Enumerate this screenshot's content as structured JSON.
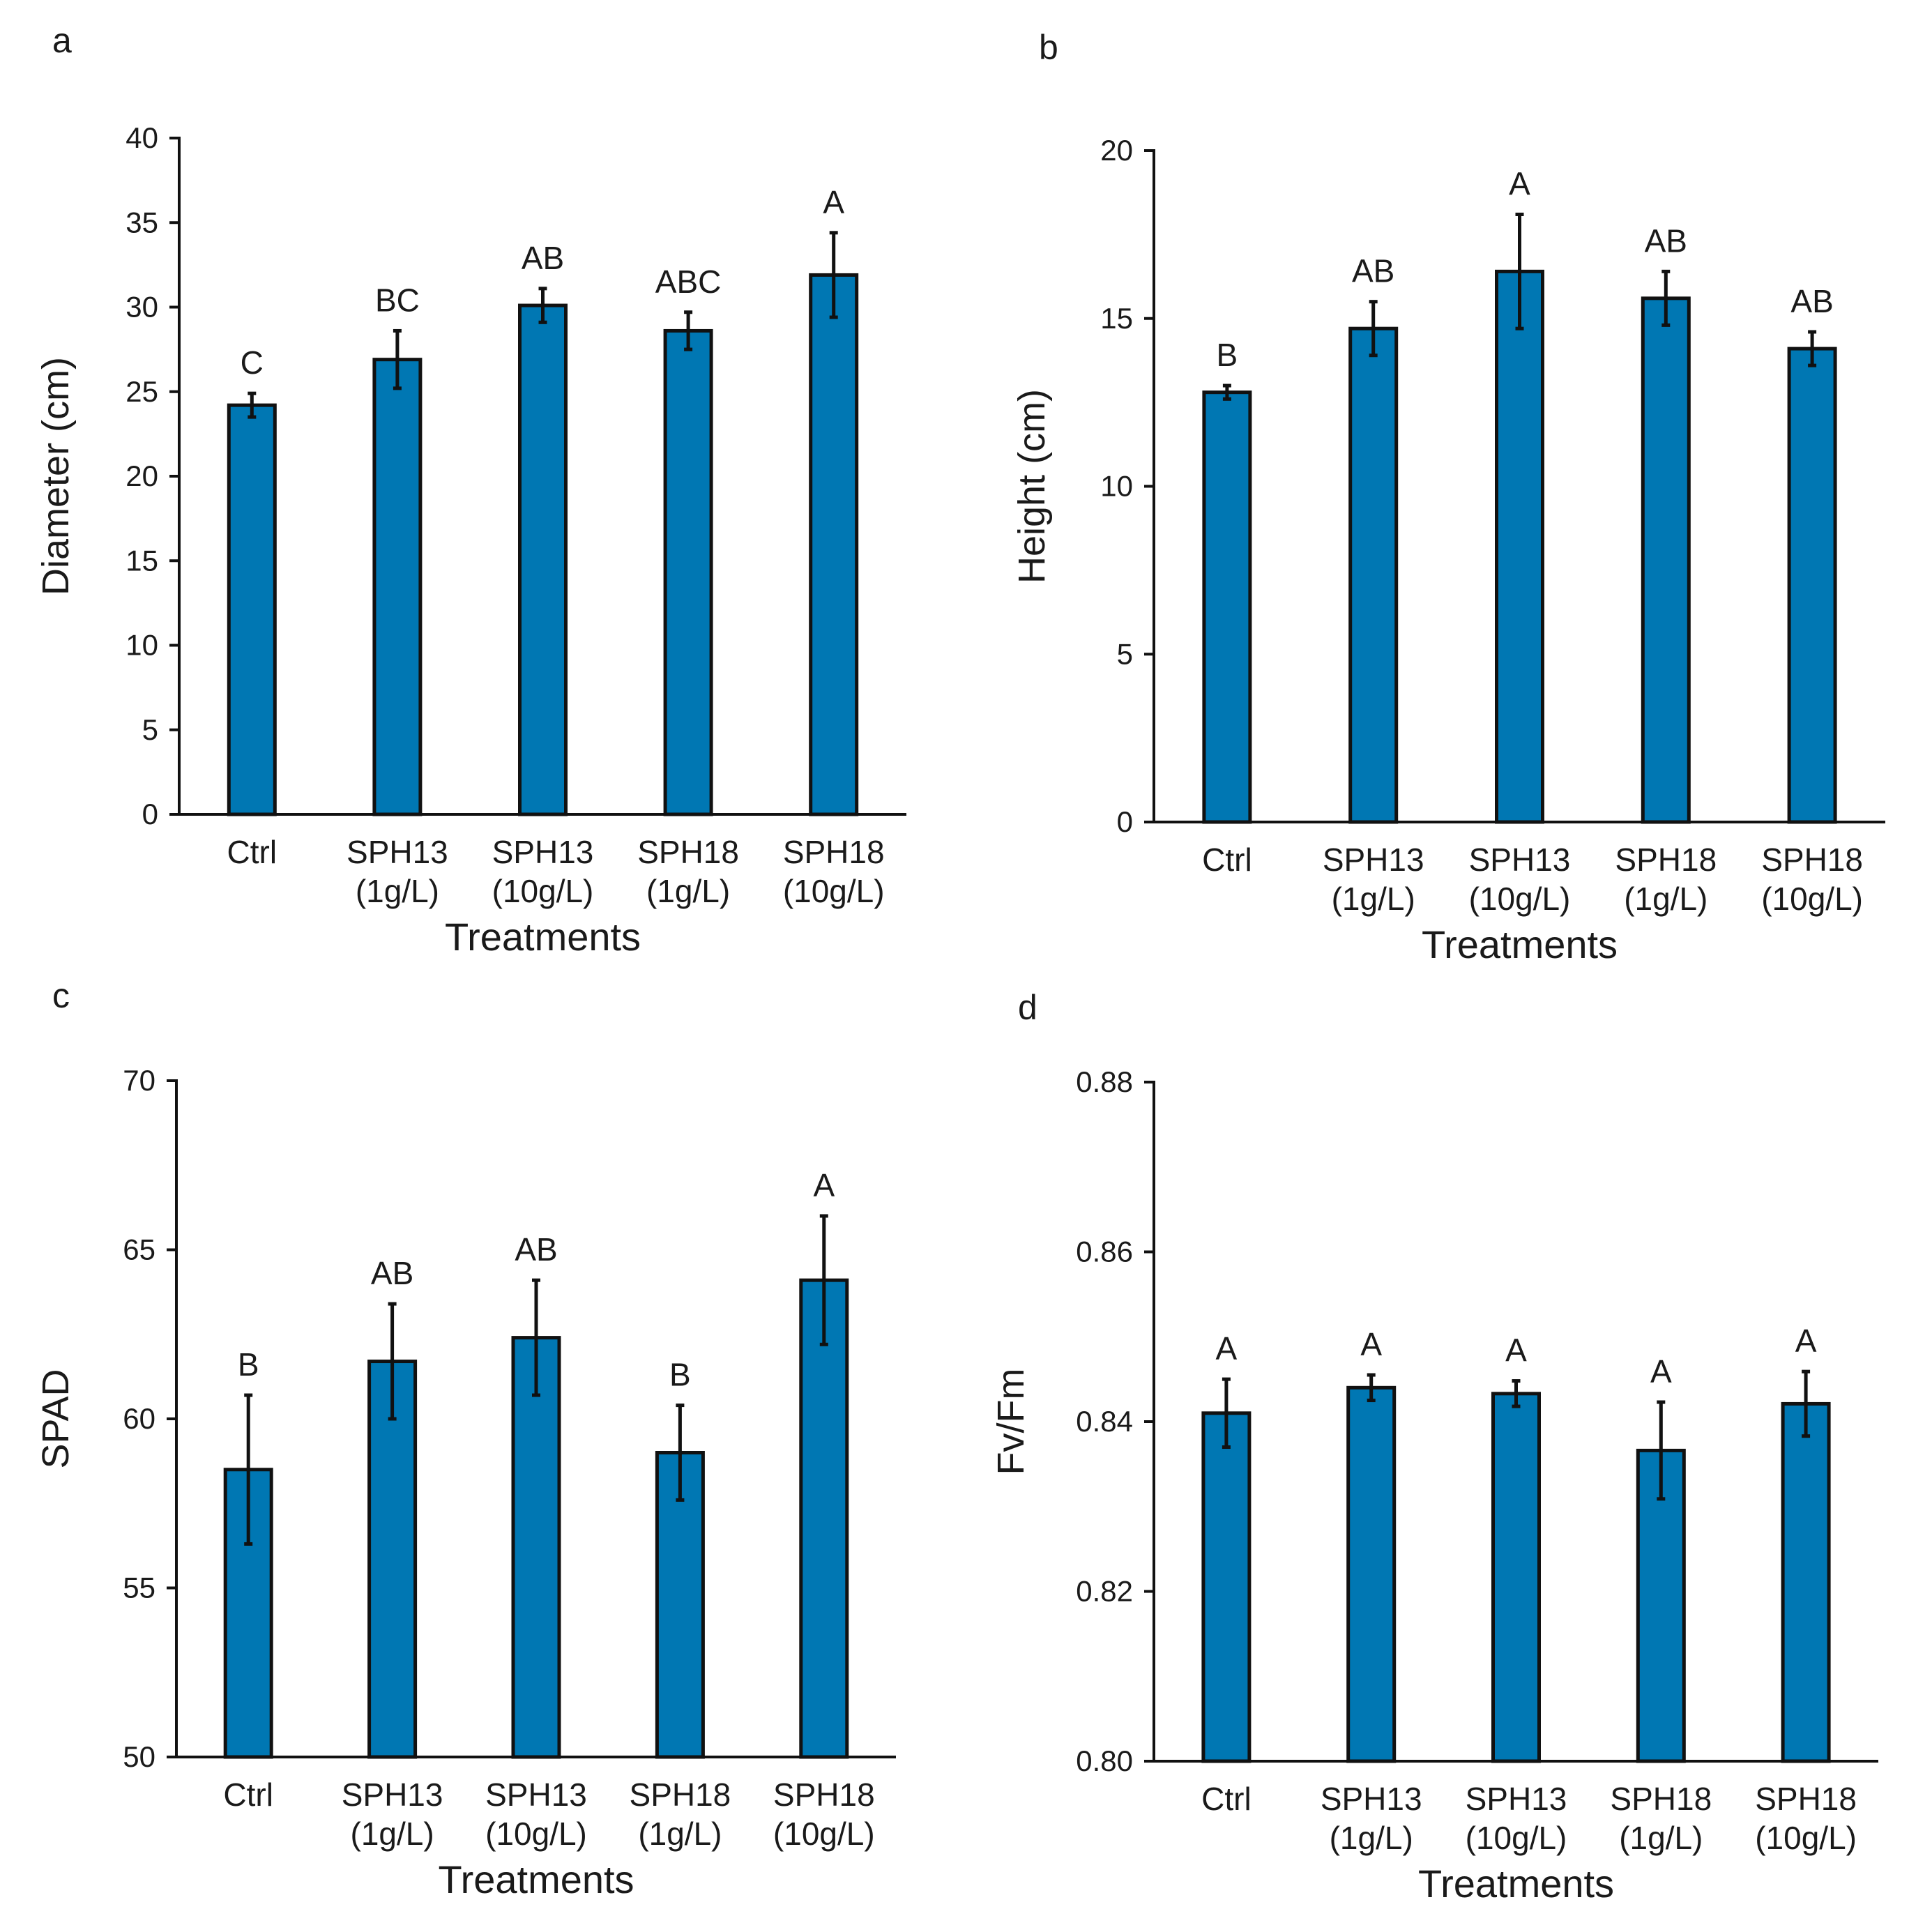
{
  "colors": {
    "bar": "#0077b3",
    "axis": "#111111"
  },
  "chart_data": [
    {
      "panel": "a",
      "type": "bar",
      "xlabel": "Treatments",
      "ylabel": "Diameter (cm)",
      "categories": [
        [
          "Ctrl"
        ],
        [
          "SPH13",
          "(1g/L)"
        ],
        [
          "SPH13",
          "(10g/L)"
        ],
        [
          "SPH18",
          "(1g/L)"
        ],
        [
          "SPH18",
          "(10g/L)"
        ]
      ],
      "values": [
        24.2,
        26.9,
        30.1,
        28.6,
        31.9
      ],
      "errors": [
        0.7,
        1.7,
        1.0,
        1.1,
        2.5
      ],
      "labels": [
        "C",
        "BC",
        "AB",
        "ABC",
        "A"
      ],
      "ylim": [
        0,
        40
      ],
      "yticks": [
        "0",
        "5",
        "10",
        "15",
        "20",
        "25",
        "30",
        "35",
        "40"
      ],
      "grid": false
    },
    {
      "panel": "b",
      "type": "bar",
      "xlabel": "Treatments",
      "ylabel": "Height (cm)",
      "categories": [
        [
          "Ctrl"
        ],
        [
          "SPH13",
          "(1g/L)"
        ],
        [
          "SPH13",
          "(10g/L)"
        ],
        [
          "SPH18",
          "(1g/L)"
        ],
        [
          "SPH18",
          "(10g/L)"
        ]
      ],
      "values": [
        12.8,
        14.7,
        16.4,
        15.6,
        14.1
      ],
      "errors": [
        0.2,
        0.8,
        1.7,
        0.8,
        0.5
      ],
      "labels": [
        "B",
        "AB",
        "A",
        "AB",
        "AB"
      ],
      "ylim": [
        0,
        20
      ],
      "yticks": [
        "0",
        "5",
        "10",
        "15",
        "20"
      ],
      "grid": false
    },
    {
      "panel": "c",
      "type": "bar",
      "xlabel": "Treatments",
      "ylabel": "SPAD",
      "categories": [
        [
          "Ctrl"
        ],
        [
          "SPH13",
          "(1g/L)"
        ],
        [
          "SPH13",
          "(10g/L)"
        ],
        [
          "SPH18",
          "(1g/L)"
        ],
        [
          "SPH18",
          "(10g/L)"
        ]
      ],
      "values": [
        58.5,
        61.7,
        62.4,
        59.0,
        64.1
      ],
      "errors": [
        2.2,
        1.7,
        1.7,
        1.4,
        1.9
      ],
      "labels": [
        "B",
        "AB",
        "AB",
        "B",
        "A"
      ],
      "ylim": [
        50,
        70
      ],
      "yticks": [
        "50",
        "55",
        "60",
        "65",
        "70"
      ],
      "grid": false
    },
    {
      "panel": "d",
      "type": "bar",
      "xlabel": "Treatments",
      "ylabel": "Fv/Fm",
      "categories": [
        [
          "Ctrl"
        ],
        [
          "SPH13",
          "(1g/L)"
        ],
        [
          "SPH13",
          "(10g/L)"
        ],
        [
          "SPH18",
          "(1g/L)"
        ],
        [
          "SPH18",
          "(10g/L)"
        ]
      ],
      "values": [
        0.841,
        0.844,
        0.8433,
        0.8366,
        0.8421
      ],
      "errors": [
        0.004,
        0.0015,
        0.0015,
        0.0057,
        0.0038
      ],
      "labels": [
        "A",
        "A",
        "A",
        "A",
        "A"
      ],
      "ylim": [
        0.8,
        0.88
      ],
      "yticks": [
        "0.80",
        "0.82",
        "0.84",
        "0.86",
        "0.88"
      ],
      "grid": false
    }
  ]
}
